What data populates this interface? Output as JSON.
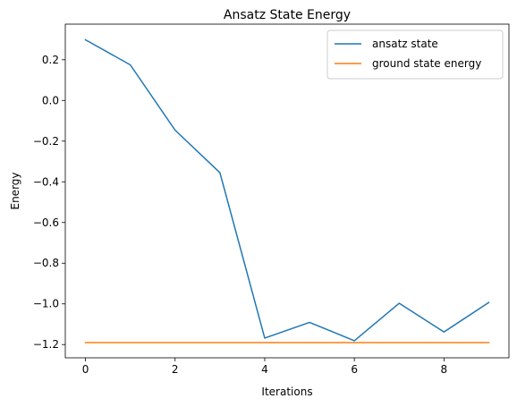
{
  "chart_data": {
    "type": "line",
    "title": "Ansatz State Energy",
    "xlabel": "Iterations",
    "ylabel": "Energy",
    "xlim": [
      -0.45,
      9.45
    ],
    "ylim": [
      -1.265,
      0.375
    ],
    "xticks": [
      0,
      2,
      4,
      6,
      8
    ],
    "xtick_labels": [
      "0",
      "2",
      "4",
      "6",
      "8"
    ],
    "yticks": [
      -1.2,
      -1.0,
      -0.8,
      -0.6,
      -0.4,
      -0.2,
      0.0,
      0.2
    ],
    "ytick_labels": [
      "−1.2",
      "−1.0",
      "−0.8",
      "−0.6",
      "−0.4",
      "−0.2",
      "0.0",
      "0.2"
    ],
    "grid": false,
    "legend_position": "top-right",
    "series": [
      {
        "name": "ansatz state",
        "color": "#1f77b4",
        "x": [
          0,
          1,
          2,
          3,
          4,
          5,
          6,
          7,
          8,
          9
        ],
        "y": [
          0.298,
          0.175,
          -0.146,
          -0.355,
          -1.168,
          -1.091,
          -1.181,
          -0.997,
          -1.138,
          -0.993
        ]
      },
      {
        "name": "ground state energy",
        "color": "#ff7f0e",
        "x": [
          0,
          1,
          2,
          3,
          4,
          5,
          6,
          7,
          8,
          9
        ],
        "y": [
          -1.19,
          -1.19,
          -1.19,
          -1.19,
          -1.19,
          -1.19,
          -1.19,
          -1.19,
          -1.19,
          -1.19
        ]
      }
    ]
  }
}
